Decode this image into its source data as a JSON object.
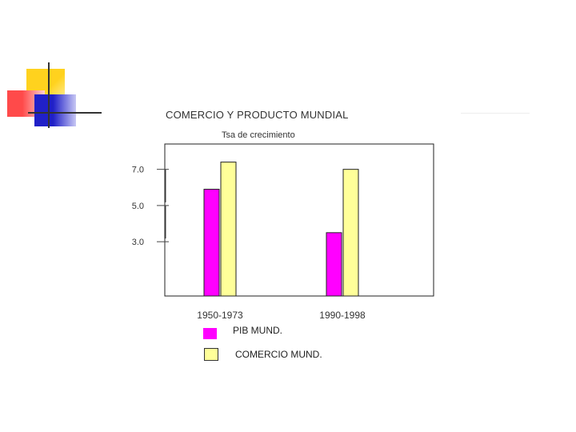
{
  "chart_data": {
    "type": "bar",
    "title": "COMERCIO Y PRODUCTO MUNDIAL",
    "subtitle": "Tsa de crecimiento",
    "categories": [
      "1950-1973",
      "1990-1998"
    ],
    "series": [
      {
        "name": "PIB MUND.",
        "values": [
          5.9,
          3.5
        ],
        "color": "#ff00ff"
      },
      {
        "name": "COMERCIO MUND.",
        "values": [
          7.4,
          7.0
        ],
        "color": "#ffff99"
      }
    ],
    "y_ticks": [
      "7.0",
      "5.0",
      "3.0"
    ],
    "y_tick_values": [
      7.0,
      5.0,
      3.0
    ],
    "ylim": [
      0,
      8.4
    ],
    "grid": false,
    "legend_position": "bottom-left"
  },
  "colors": {
    "deco_yellow": "#ffd21e",
    "deco_red": "#ff5a5a",
    "deco_blue": "#2b2bcf",
    "deco_line": "#333333"
  }
}
